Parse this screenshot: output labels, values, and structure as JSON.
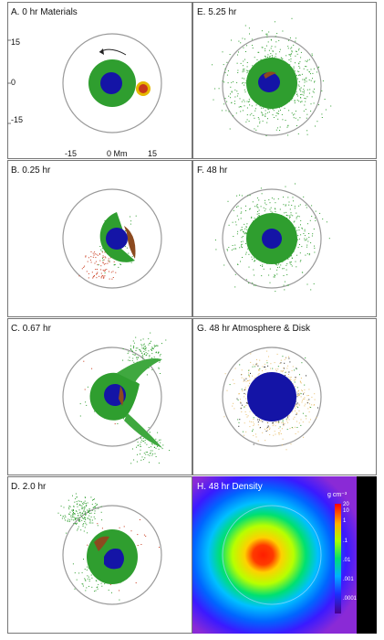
{
  "panels": {
    "a": {
      "title": "A. 0 hr Materials"
    },
    "b": {
      "title": "B. 0.25 hr"
    },
    "c": {
      "title": "C. 0.67 hr"
    },
    "d": {
      "title": "D. 2.0 hr"
    },
    "e": {
      "title": "E. 5.25 hr"
    },
    "f": {
      "title": "F. 48 hr"
    },
    "g": {
      "title": "G. 48 hr Atmosphere & Disk"
    },
    "h": {
      "title": "H. 48 hr Density"
    }
  },
  "axis": {
    "y_top": "15",
    "y_mid": "0",
    "y_bottom": "-15",
    "x_left": "-15",
    "x_mid": "0 Mm",
    "x_right": "15"
  },
  "colorbar": {
    "unit": "g cm⁻³",
    "ticks": [
      "20",
      "10",
      "1",
      ".1",
      ".01",
      ".001",
      ".0001"
    ]
  },
  "colors": {
    "mantle": "#2f9e2f",
    "core": "#1414a6",
    "impactor": "#c8381a",
    "impactor_ring": "#e6b800",
    "ring": "#9a9a9a",
    "dots_atmosphere": "#e8c070",
    "h_background": "#000000"
  }
}
